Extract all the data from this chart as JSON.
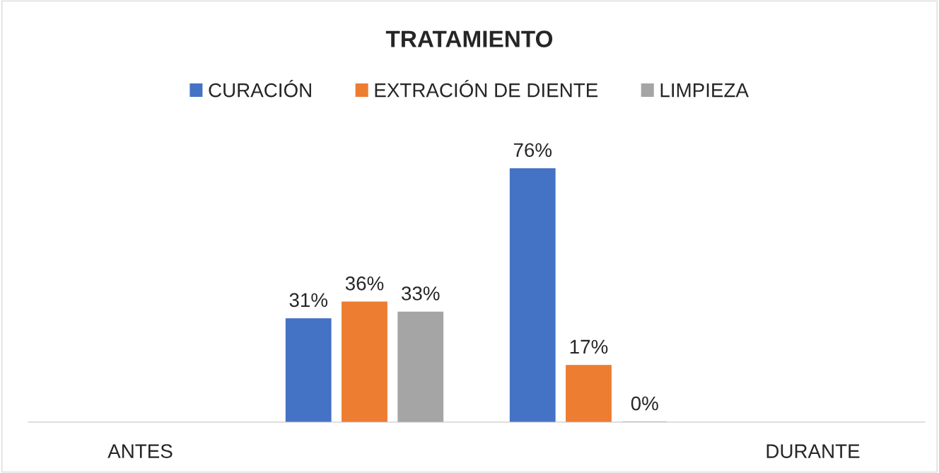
{
  "chart_data": {
    "type": "bar",
    "title": "TRATAMIENTO",
    "categories": [
      "ANTES",
      null,
      null,
      "DURANTE"
    ],
    "series": [
      {
        "name": "CURACIÓN",
        "color": "#4472c4",
        "values": [
          null,
          31,
          76,
          null
        ],
        "value_labels": [
          null,
          "31%",
          "76%",
          null
        ]
      },
      {
        "name": "EXTRACIÓN DE DIENTE",
        "color": "#ed7d31",
        "values": [
          null,
          36,
          17,
          null
        ],
        "value_labels": [
          null,
          "36%",
          "17%",
          null
        ]
      },
      {
        "name": "LIMPIEZA",
        "color": "#a5a5a5",
        "values": [
          null,
          33,
          0,
          null
        ],
        "value_labels": [
          null,
          "33%",
          "0%",
          null
        ]
      }
    ],
    "legend": "top",
    "grid": false,
    "tick_labels": "x"
  }
}
